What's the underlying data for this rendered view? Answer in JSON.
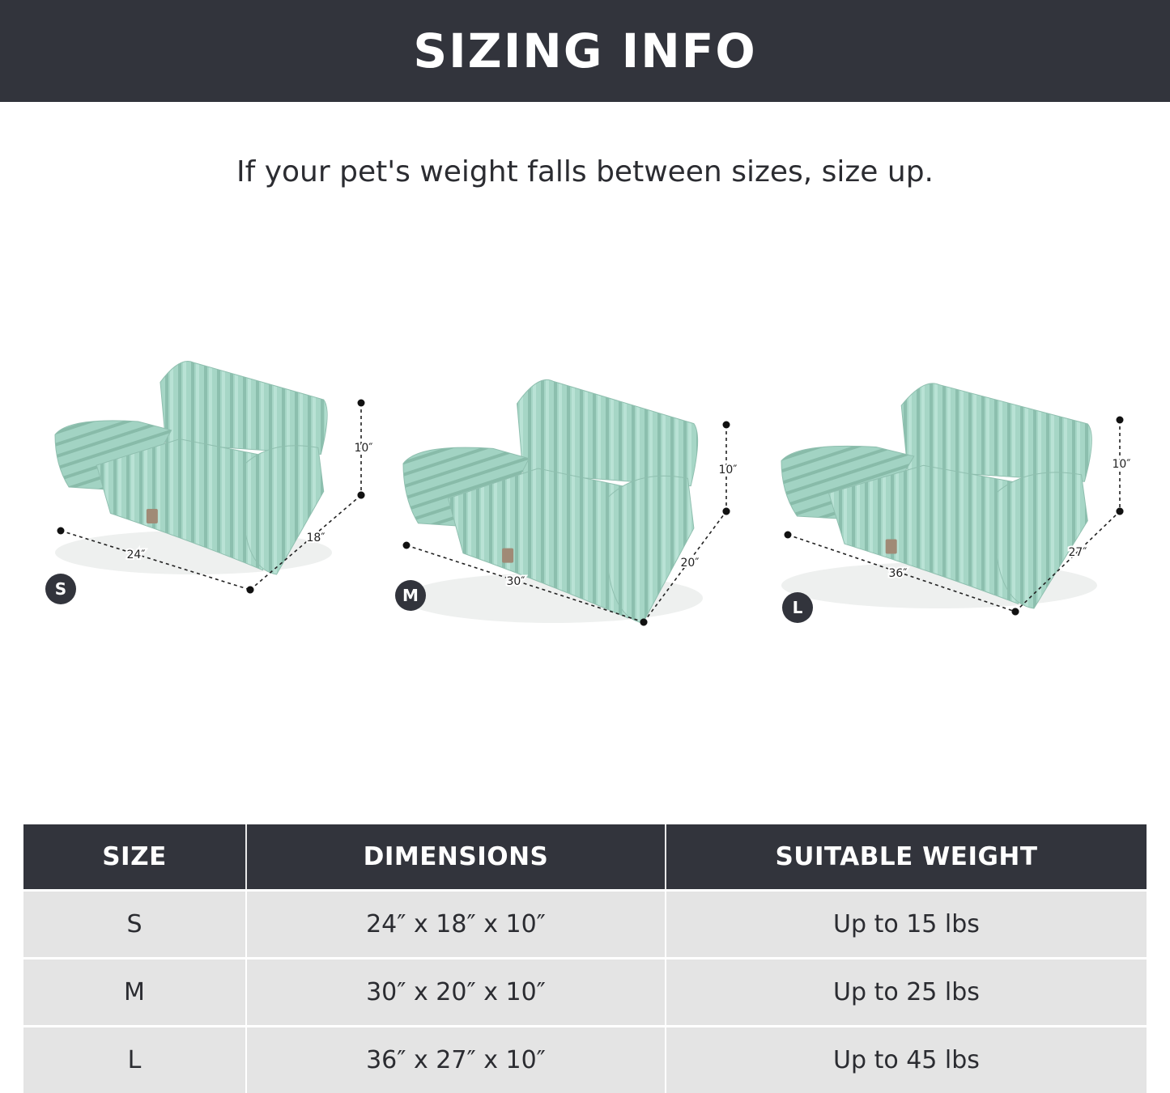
{
  "title": "SIZING INFO",
  "subtitle": "If your pet's weight falls between sizes, size up.",
  "colors": {
    "header_bg": "#32343c",
    "bed": "#a6d6c6",
    "row_bg": "#e4e4e4"
  },
  "beds": [
    {
      "size": "S",
      "width": "24″",
      "depth": "18″",
      "height": "10″"
    },
    {
      "size": "M",
      "width": "30″",
      "depth": "20″",
      "height": "10″"
    },
    {
      "size": "L",
      "width": "36″",
      "depth": "27″",
      "height": "10″"
    }
  ],
  "table": {
    "headers": [
      "SIZE",
      "DIMENSIONS",
      "SUITABLE WEIGHT"
    ],
    "rows": [
      [
        "S",
        "24″ x 18″ x 10″",
        "Up to 15 lbs"
      ],
      [
        "M",
        "30″ x 20″ x 10″",
        "Up to 25 lbs"
      ],
      [
        "L",
        "36″ x 27″ x 10″",
        "Up to 45 lbs"
      ]
    ]
  }
}
